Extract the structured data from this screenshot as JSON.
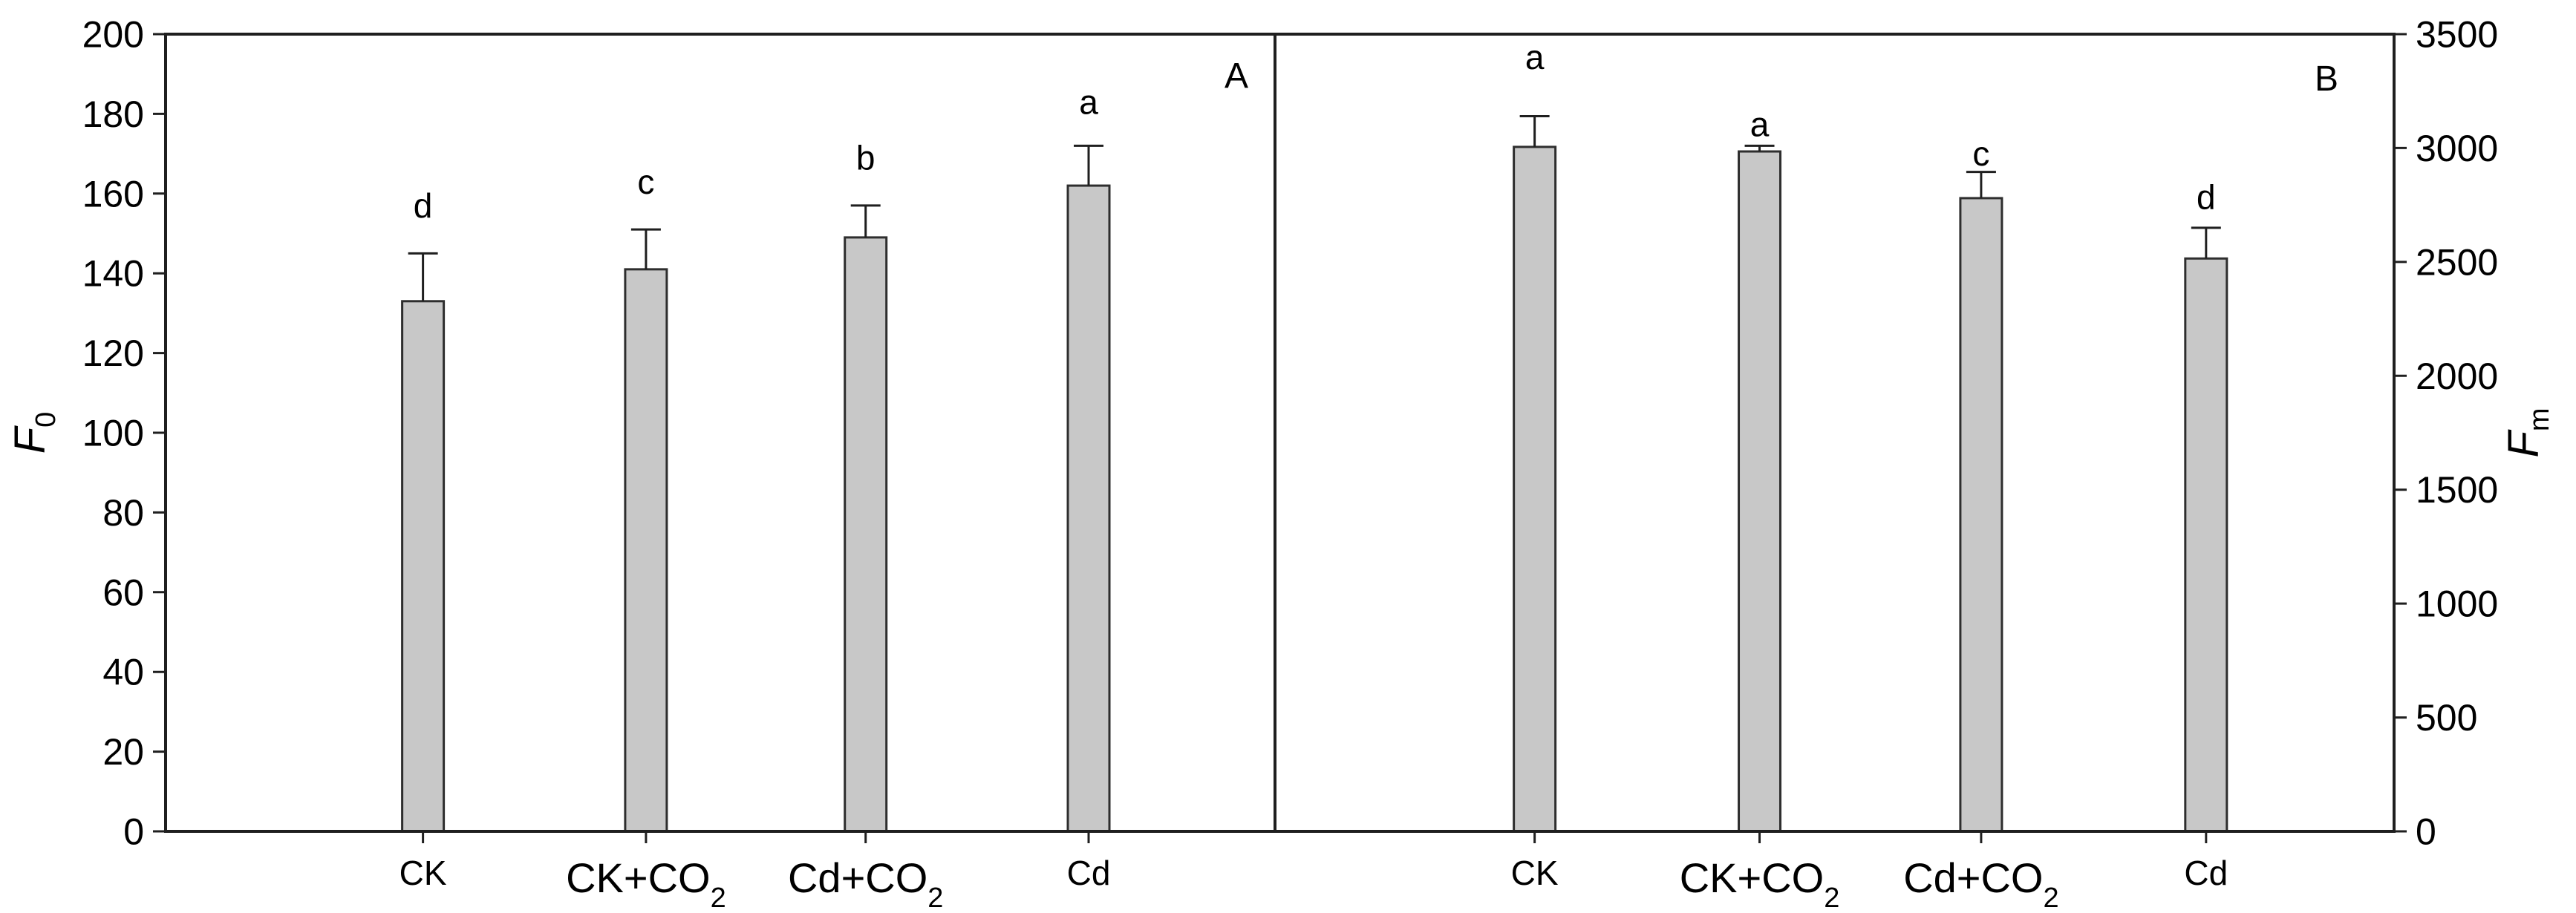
{
  "figure": {
    "background": "#ffffff",
    "axis_color": "#1f1f1f",
    "bar_fill": "#c8c8c8",
    "bar_stroke": "#2e2e2e",
    "error_bar_color": "#1f1f1f"
  },
  "chart_data": {
    "type": "bar",
    "grid": false,
    "legend": null,
    "categories": [
      "CK",
      "CK+CO2",
      "Cd+CO2",
      "Cd"
    ],
    "panels": [
      {
        "label": "A",
        "side": "left",
        "ylabel": "F",
        "ylabel_sub": "0",
        "ylim": [
          0,
          200
        ],
        "tick_step": 20,
        "tick_labels": [
          "0",
          "20",
          "40",
          "60",
          "80",
          "100",
          "120",
          "140",
          "160",
          "180",
          "200"
        ],
        "series": {
          "name": "F0",
          "values": [
            133,
            141,
            149,
            162
          ],
          "errors": [
            12,
            10,
            8,
            10
          ]
        },
        "sig_letters": [
          "d",
          "c",
          "b",
          "a"
        ],
        "letter_y": [
          157,
          163,
          169,
          183
        ]
      },
      {
        "label": "B",
        "side": "right",
        "ylabel": "F",
        "ylabel_sub": "m",
        "ylim": [
          0,
          3500
        ],
        "tick_step": 500,
        "tick_labels": [
          "0",
          "500",
          "1000",
          "1500",
          "2000",
          "2500",
          "3000",
          "3500"
        ],
        "series": {
          "name": "Fm",
          "values": [
            3005,
            2985,
            2780,
            2515
          ],
          "errors": [
            135,
            25,
            115,
            135
          ]
        },
        "sig_letters": [
          "a",
          "a",
          "c",
          "d"
        ],
        "letter_y": [
          3400,
          3105,
          2975,
          2785
        ]
      }
    ]
  }
}
